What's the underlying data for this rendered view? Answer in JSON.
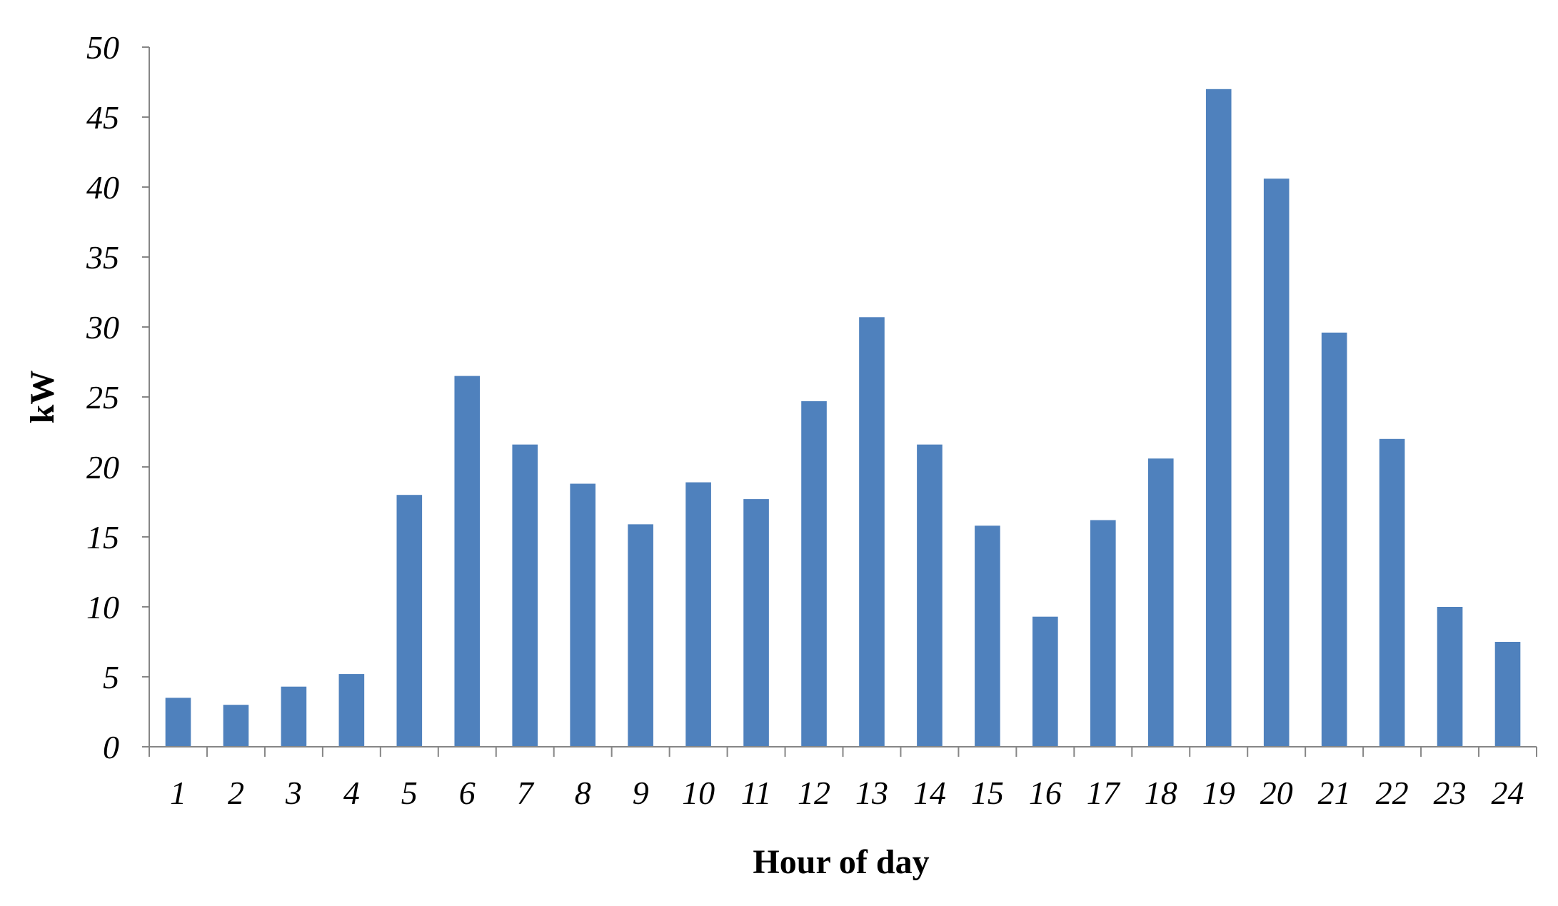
{
  "chart_data": {
    "type": "bar",
    "title": "",
    "xlabel": "Hour of day",
    "ylabel": "kW",
    "categories": [
      "1",
      "2",
      "3",
      "4",
      "5",
      "6",
      "7",
      "8",
      "9",
      "10",
      "11",
      "12",
      "13",
      "14",
      "15",
      "16",
      "17",
      "18",
      "19",
      "20",
      "21",
      "22",
      "23",
      "24"
    ],
    "values": [
      3.5,
      3.0,
      4.3,
      5.2,
      18.0,
      26.5,
      21.6,
      18.8,
      15.9,
      18.9,
      17.7,
      24.7,
      30.7,
      21.6,
      15.8,
      9.3,
      16.2,
      20.6,
      47.0,
      40.6,
      29.6,
      22.0,
      10.0,
      7.5
    ],
    "ylim": [
      0,
      50
    ],
    "yticks": [
      0,
      5,
      10,
      15,
      20,
      25,
      30,
      35,
      40,
      45,
      50
    ],
    "grid": false,
    "legend": "none",
    "bar_color": "#4F81BD",
    "axis_color": "#868686"
  }
}
